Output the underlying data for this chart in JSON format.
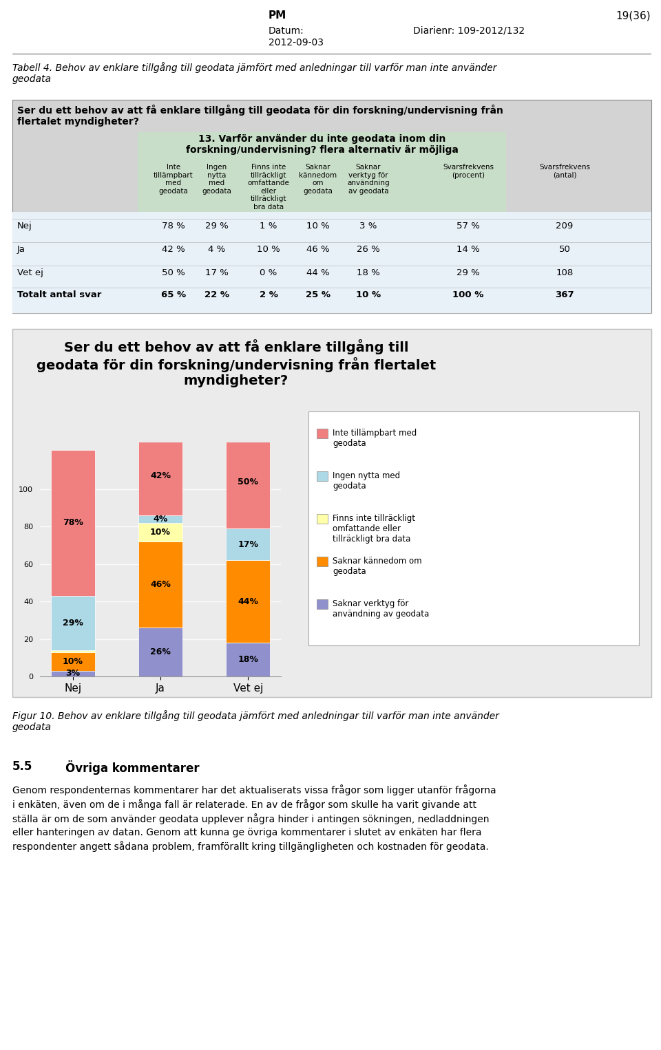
{
  "header_left": "PM",
  "header_right": "19(36)",
  "datum_label": "Datum:",
  "datum_value": "2012-09-03",
  "diarienr_label": "Diarienr: 109-2012/132",
  "tabell_caption": "Tabell 4. Behov av enklare tillgång till geodata jämfört med anledningar till varför man inte använder\ngeodata",
  "table_header_q1": "Ser du ett behov av att få enklare tillgång till geodata för din forskning/undervisning från\nflertalet myndigheter?",
  "table_header_q2_line1": "13. Varför använder du inte geodata inom din",
  "table_header_q2_line2": "forskning/undervisning? flera alternativ är möjliga",
  "col_headers": [
    "Inte\ntillämpbart\nmed\ngeodata",
    "Ingen\nnytta\nmed\ngeodata",
    "Finns inte\ntillräckligt\nomfattande\neller\ntillräckligt\nbra data",
    "Saknar\nkännedom\nom\ngeodata",
    "Saknar\nverktyg för\nanvändning\nav geodata",
    "Svarsfrekvens\n(procent)",
    "Svarsfrekvens\n(antal)"
  ],
  "row_labels": [
    "Nej",
    "Ja",
    "Vet ej",
    "Totalt antal svar"
  ],
  "table_data": [
    [
      "78 %",
      "29 %",
      "1 %",
      "10 %",
      "3 %",
      "57 %",
      "209"
    ],
    [
      "42 %",
      "4 %",
      "10 %",
      "46 %",
      "26 %",
      "14 %",
      "50"
    ],
    [
      "50 %",
      "17 %",
      "0 %",
      "44 %",
      "18 %",
      "29 %",
      "108"
    ],
    [
      "65 %",
      "22 %",
      "2 %",
      "25 %",
      "10 %",
      "100 %",
      "367"
    ]
  ],
  "chart_title": "Ser du ett behov av att få enklare tillgång till\ngeodata för din forskning/undervisning från flertalet\nmyndigheter?",
  "bar_categories": [
    "Nej",
    "Ja",
    "Vet ej"
  ],
  "stack_order": [
    "Saknar verktyg för användning av geodata",
    "Saknar kännedom om geodata",
    "Finns inte tillräckligt",
    "Ingen nytta med geodata",
    "Inte tillämpbart med geodata"
  ],
  "bar_data": {
    "Inte tillämpbart med geodata": [
      78,
      42,
      50
    ],
    "Ingen nytta med geodata": [
      29,
      4,
      17
    ],
    "Finns inte tillräckligt": [
      1,
      10,
      0
    ],
    "Saknar kännedom om geodata": [
      10,
      46,
      44
    ],
    "Saknar verktyg för användning av geodata": [
      3,
      26,
      18
    ]
  },
  "bar_colors": {
    "Inte tillämpbart med geodata": "#F08080",
    "Ingen nytta med geodata": "#ADD8E6",
    "Finns inte tillräckligt": "#FFFFAA",
    "Saknar kännedom om geodata": "#FF8C00",
    "Saknar verktyg för användning av geodata": "#9090CC"
  },
  "legend_labels": [
    "Inte tillämpbart med\ngeodata",
    "Ingen nytta med\ngeodata",
    "Finns inte tillräckligt\nomfattande eller\ntillräckligt bra data",
    "Saknar kännedom om\ngeodata",
    "Saknar verktyg för\nanvändning av geodata"
  ],
  "legend_keys": [
    "Inte tillämpbart med geodata",
    "Ingen nytta med geodata",
    "Finns inte tillräckligt",
    "Saknar kännedom om geodata",
    "Saknar verktyg för användning av geodata"
  ],
  "figur_caption": "Figur 10. Behov av enklare tillgång till geodata jämfört med anledningar till varför man inte använder\ngeodata",
  "section_num": "5.5",
  "section_title": "Övriga kommentarer",
  "body_text": "Genom respondenternas kommentarer har det aktualiserats vissa frågor som ligger utanför frågorna\ni enkäten, även om de i många fall är relaterade. En av de frågor som skulle ha varit givande att\nställa är om de som använder geodata upplever några hinder i antingen sökningen, nedladdningen\neller hanteringen av datan. Genom att kunna ge övriga kommentarer i slutet av enkäten har flera\nrespondenter angett sådana problem, framförallt kring tillgängligheten och kostnaden för geodata.",
  "bg_color": "#FFFFFF",
  "table_outer_bg": "#D3D3D3",
  "table_inner_bg": "#C8DEC8",
  "table_row_bg": "#E8F0F8",
  "chart_bg": "#EBEBEB",
  "label_show_threshold": 3
}
